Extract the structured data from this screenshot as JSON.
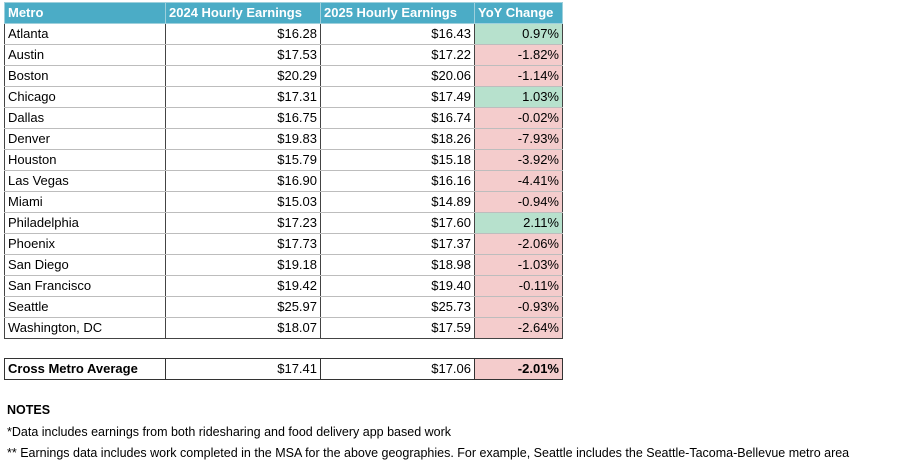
{
  "table": {
    "header": [
      "Metro",
      "2024 Hourly Earnings",
      "2025 Hourly Earnings",
      "YoY Change"
    ],
    "rows": [
      [
        "Atlanta",
        "$16.28",
        "$16.43",
        "0.97%"
      ],
      [
        "Austin",
        "$17.53",
        "$17.22",
        "-1.82%"
      ],
      [
        "Boston",
        "$20.29",
        "$20.06",
        "-1.14%"
      ],
      [
        "Chicago",
        "$17.31",
        "$17.49",
        "1.03%"
      ],
      [
        "Dallas",
        "$16.75",
        "$16.74",
        "-0.02%"
      ],
      [
        "Denver",
        "$19.83",
        "$18.26",
        "-7.93%"
      ],
      [
        "Houston",
        "$15.79",
        "$15.18",
        "-3.92%"
      ],
      [
        "Las Vegas",
        "$16.90",
        "$16.16",
        "-4.41%"
      ],
      [
        "Miami",
        "$15.03",
        "$14.89",
        "-0.94%"
      ],
      [
        "Philadelphia",
        "$17.23",
        "$17.60",
        "2.11%"
      ],
      [
        "Phoenix",
        "$17.73",
        "$17.37",
        "-2.06%"
      ],
      [
        "San Diego",
        "$19.18",
        "$18.98",
        "-1.03%"
      ],
      [
        "San Francisco",
        "$19.42",
        "$19.40",
        "-0.11%"
      ],
      [
        "Seattle",
        "$25.97",
        "$25.73",
        "-0.93%"
      ],
      [
        "Washington, DC",
        "$18.07",
        "$17.59",
        "-2.64%"
      ]
    ],
    "average": [
      "Cross Metro Average",
      "$17.41",
      "$17.06",
      "-2.01%"
    ]
  },
  "notes": {
    "title": "NOTES",
    "lines": [
      "*Data includes earnings from both ridesharing and food delivery app based work",
      "** Earnings data includes work completed in the MSA for the above geographies. For example, Seattle includes the Seattle-Tacoma-Bellevue metro area"
    ]
  }
}
